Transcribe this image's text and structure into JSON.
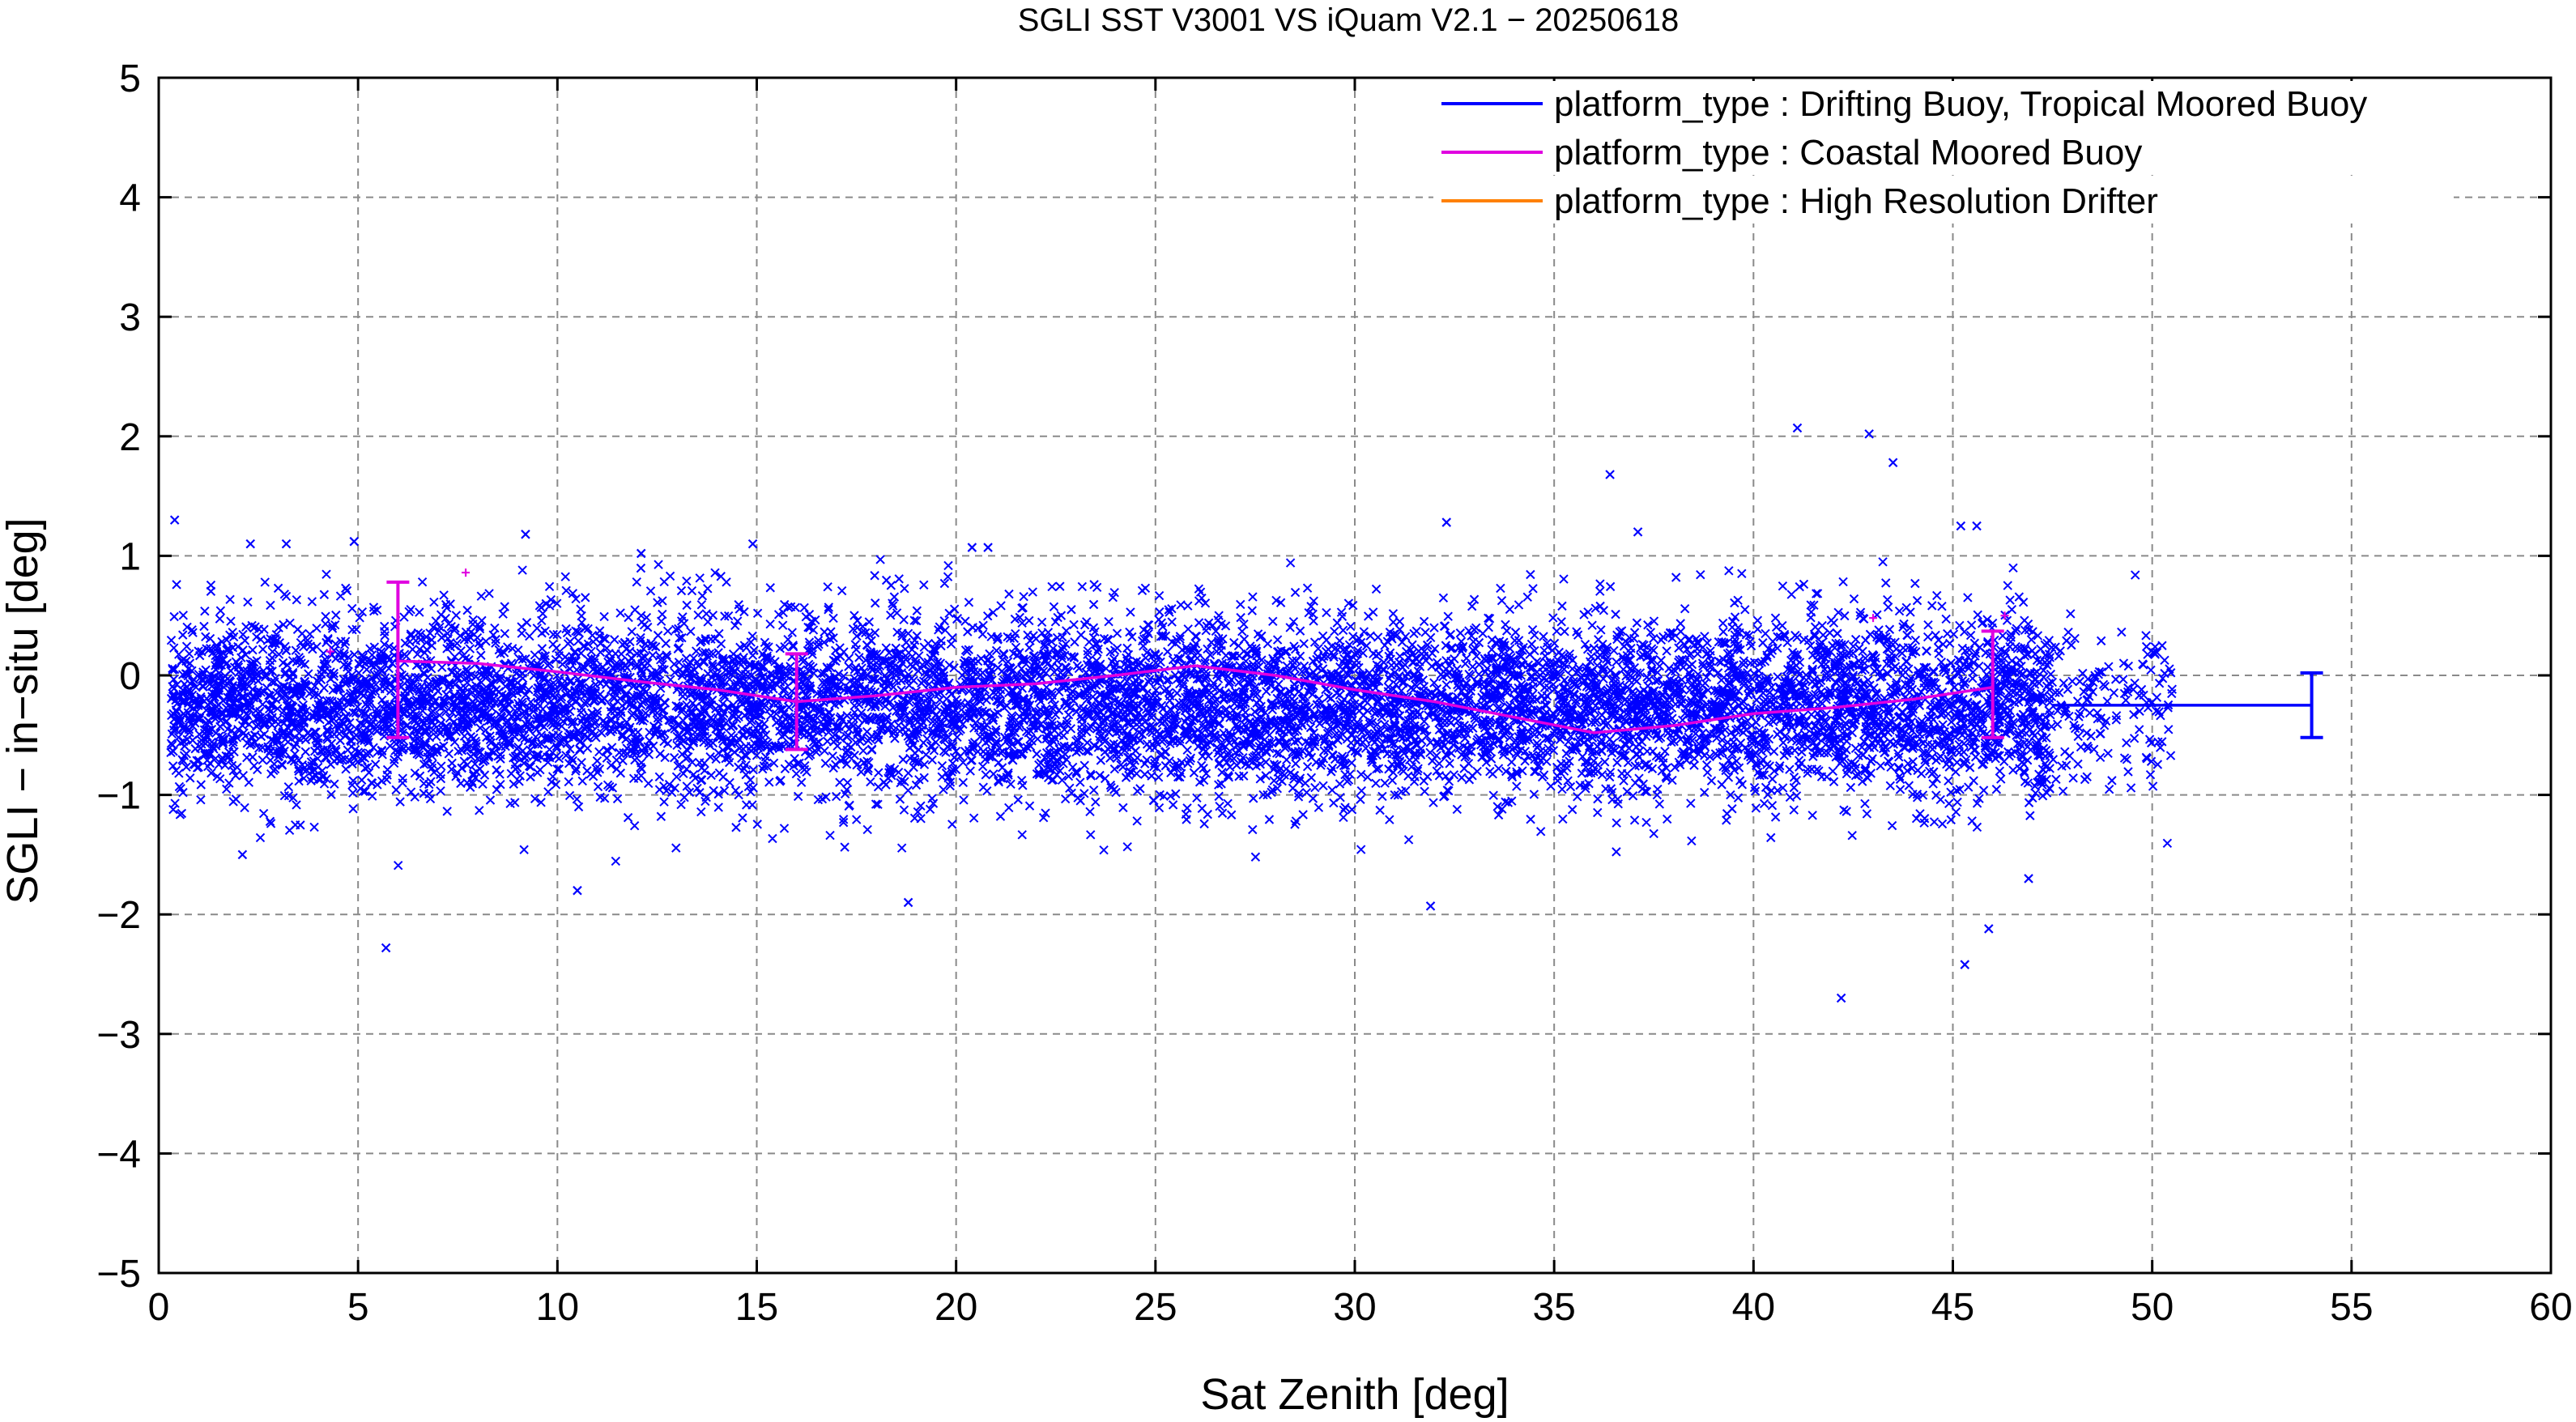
{
  "chart_data": {
    "type": "scatter",
    "title": "SGLI SST V3001 VS iQuam V2.1  − 20250618",
    "xlabel": "Sat Zenith [deg]",
    "ylabel": "SGLI − in−situ [deg]",
    "xlim": [
      0,
      60
    ],
    "ylim": [
      -5,
      5
    ],
    "xticks": [
      0,
      5,
      10,
      15,
      20,
      25,
      30,
      35,
      40,
      45,
      50,
      55,
      60
    ],
    "xtick_labels": [
      "0",
      "5",
      "10",
      "15",
      "20",
      "25",
      "30",
      "35",
      "40",
      "45",
      "50",
      "55",
      "60"
    ],
    "yticks": [
      -5,
      -4,
      -3,
      -2,
      -1,
      0,
      1,
      2,
      3,
      4,
      5
    ],
    "ytick_labels": [
      "−5",
      "−4",
      "−3",
      "−2",
      "−1",
      "0",
      "1",
      "2",
      "3",
      "4",
      "5"
    ],
    "grid": true,
    "legend_position": "top-right",
    "series": [
      {
        "name": "platform_type : Drifting Buoy, Tropical Moored Buoy",
        "color": "#0000ff",
        "marker": "x",
        "scatter_x_range": [
          0.3,
          50.5
        ],
        "scatter_y_center": -0.25,
        "scatter_y_spread": 0.38,
        "scatter_point_count_estimate": 9000,
        "outliers": [
          {
            "x": 0.4,
            "y": 1.3
          },
          {
            "x": 2.3,
            "y": 1.1
          },
          {
            "x": 3.2,
            "y": 1.1
          },
          {
            "x": 4.9,
            "y": 1.12
          },
          {
            "x": 9.2,
            "y": 1.18
          },
          {
            "x": 12.1,
            "y": 1.02
          },
          {
            "x": 14.9,
            "y": 1.1
          },
          {
            "x": 20.4,
            "y": 1.07
          },
          {
            "x": 20.8,
            "y": 1.07
          },
          {
            "x": 32.3,
            "y": 1.28
          },
          {
            "x": 36.4,
            "y": 1.68
          },
          {
            "x": 37.1,
            "y": 1.2
          },
          {
            "x": 41.1,
            "y": 2.07
          },
          {
            "x": 42.9,
            "y": 2.02
          },
          {
            "x": 43.5,
            "y": 1.78
          },
          {
            "x": 45.2,
            "y": 1.25
          },
          {
            "x": 45.6,
            "y": 1.25
          },
          {
            "x": 5.7,
            "y": -2.28
          },
          {
            "x": 2.1,
            "y": -1.5
          },
          {
            "x": 10.5,
            "y": -1.8
          },
          {
            "x": 18.8,
            "y": -1.9
          },
          {
            "x": 31.9,
            "y": -1.93
          },
          {
            "x": 42.2,
            "y": -2.7
          },
          {
            "x": 45.3,
            "y": -2.42
          },
          {
            "x": 45.9,
            "y": -2.12
          },
          {
            "x": 46.9,
            "y": -1.7
          }
        ],
        "binned_mean": [
          {
            "x": 47.5,
            "y": -0.25
          },
          {
            "x": 54,
            "y": -0.25
          }
        ],
        "errorbars": [
          {
            "x": 54,
            "y": -0.25,
            "low": -0.52,
            "high": 0.02
          }
        ]
      },
      {
        "name": "platform_type : Coastal Moored Buoy",
        "color": "#e000e0",
        "marker": "+",
        "points": [
          {
            "x": 4.3,
            "y": 0.2
          },
          {
            "x": 7.7,
            "y": 0.86
          },
          {
            "x": 43.0,
            "y": 0.48
          },
          {
            "x": 46.3,
            "y": 0.5
          }
        ],
        "binned_mean": [
          {
            "x": 6,
            "y": 0.12
          },
          {
            "x": 8,
            "y": 0.1
          },
          {
            "x": 10,
            "y": 0.03
          },
          {
            "x": 12,
            "y": -0.05
          },
          {
            "x": 14,
            "y": -0.12
          },
          {
            "x": 16,
            "y": -0.22
          },
          {
            "x": 18,
            "y": -0.17
          },
          {
            "x": 20,
            "y": -0.1
          },
          {
            "x": 22,
            "y": -0.07
          },
          {
            "x": 24,
            "y": 0.0
          },
          {
            "x": 26,
            "y": 0.08
          },
          {
            "x": 28,
            "y": 0.0
          },
          {
            "x": 30,
            "y": -0.12
          },
          {
            "x": 32,
            "y": -0.22
          },
          {
            "x": 34,
            "y": -0.35
          },
          {
            "x": 36,
            "y": -0.48
          },
          {
            "x": 38,
            "y": -0.42
          },
          {
            "x": 40,
            "y": -0.32
          },
          {
            "x": 42,
            "y": -0.27
          },
          {
            "x": 44,
            "y": -0.2
          },
          {
            "x": 46,
            "y": -0.1
          }
        ],
        "errorbars": [
          {
            "x": 6,
            "y": 0.12,
            "low": -0.52,
            "high": 0.78
          },
          {
            "x": 16,
            "y": -0.22,
            "low": -0.62,
            "high": 0.18
          },
          {
            "x": 46,
            "y": -0.1,
            "low": -0.52,
            "high": 0.37
          }
        ]
      },
      {
        "name": "platform_type : High Resolution Drifter",
        "color": "#ff8000",
        "marker": "x",
        "points": []
      }
    ]
  }
}
